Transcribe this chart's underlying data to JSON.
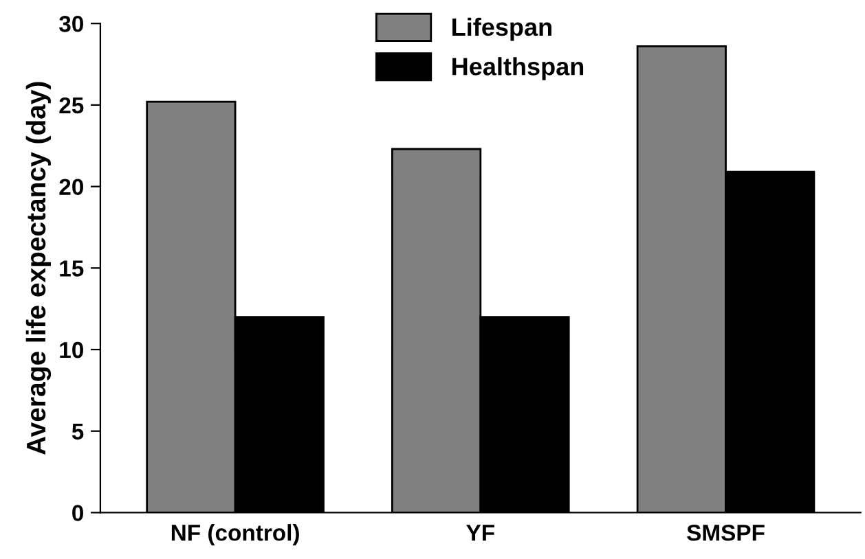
{
  "chart_data": {
    "type": "bar",
    "ylabel": "Average life expectancy (day)",
    "categories": [
      "NF (control)",
      "YF",
      "SMSPF"
    ],
    "series": [
      {
        "name": "Lifespan",
        "color": "#808080",
        "values": [
          25.2,
          22.3,
          28.6
        ]
      },
      {
        "name": "Healthspan",
        "color": "#000000",
        "values": [
          12,
          12,
          20.9
        ]
      }
    ],
    "ylim": [
      0,
      30
    ],
    "yticks": [
      0,
      5,
      10,
      15,
      20,
      25,
      30
    ],
    "grid": false,
    "legend": "top"
  }
}
